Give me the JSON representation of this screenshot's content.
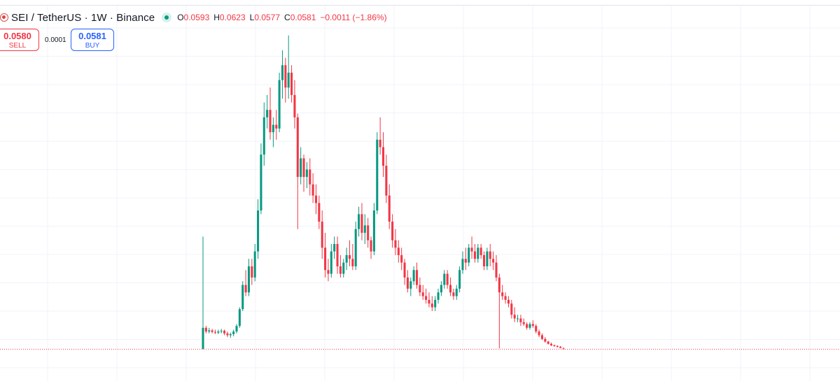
{
  "legend": {
    "symbol": "SEI / TetherUS · 1W · Binance",
    "ohlc": {
      "o_label": "O",
      "o_value": "0.0593",
      "h_label": "H",
      "h_value": "0.0623",
      "l_label": "L",
      "l_value": "0.0577",
      "c_label": "C",
      "c_value": "0.0581",
      "change": "−0.0011 (−1.86%)"
    }
  },
  "trade": {
    "sell_price": "0.0580",
    "sell_label": "SELL",
    "spread": "0.0001",
    "buy_price": "0.0581",
    "buy_label": "BUY"
  },
  "colors": {
    "up": "#089981",
    "down": "#f23645",
    "grid": "#f0f3fa",
    "price_line": "#f23645"
  },
  "chart_data": {
    "type": "candlestick",
    "interval": "1W",
    "last_close": 0.0581,
    "y_range": [
      0.05,
      0.92
    ],
    "grid": true,
    "candles": [
      [
        0.058,
        0.36,
        0.058,
        0.115
      ],
      [
        0.115,
        0.12,
        0.1,
        0.105
      ],
      [
        0.105,
        0.115,
        0.1,
        0.108
      ],
      [
        0.108,
        0.112,
        0.1,
        0.104
      ],
      [
        0.104,
        0.11,
        0.098,
        0.102
      ],
      [
        0.102,
        0.11,
        0.098,
        0.105
      ],
      [
        0.105,
        0.112,
        0.1,
        0.107
      ],
      [
        0.107,
        0.11,
        0.095,
        0.1
      ],
      [
        0.1,
        0.105,
        0.09,
        0.095
      ],
      [
        0.095,
        0.102,
        0.088,
        0.098
      ],
      [
        0.098,
        0.11,
        0.092,
        0.105
      ],
      [
        0.105,
        0.125,
        0.1,
        0.12
      ],
      [
        0.12,
        0.17,
        0.115,
        0.165
      ],
      [
        0.165,
        0.24,
        0.16,
        0.23
      ],
      [
        0.23,
        0.27,
        0.2,
        0.21
      ],
      [
        0.21,
        0.3,
        0.2,
        0.28
      ],
      [
        0.28,
        0.3,
        0.23,
        0.25
      ],
      [
        0.25,
        0.34,
        0.24,
        0.32
      ],
      [
        0.32,
        0.46,
        0.3,
        0.43
      ],
      [
        0.43,
        0.61,
        0.42,
        0.58
      ],
      [
        0.58,
        0.72,
        0.55,
        0.68
      ],
      [
        0.68,
        0.74,
        0.65,
        0.7
      ],
      [
        0.7,
        0.76,
        0.62,
        0.64
      ],
      [
        0.64,
        0.68,
        0.6,
        0.66
      ],
      [
        0.66,
        0.7,
        0.62,
        0.65
      ],
      [
        0.65,
        0.8,
        0.64,
        0.78
      ],
      [
        0.78,
        0.86,
        0.73,
        0.82
      ],
      [
        0.82,
        0.84,
        0.72,
        0.76
      ],
      [
        0.76,
        0.9,
        0.73,
        0.8
      ],
      [
        0.8,
        0.82,
        0.72,
        0.74
      ],
      [
        0.74,
        0.78,
        0.65,
        0.68
      ],
      [
        0.68,
        0.69,
        0.38,
        0.52
      ],
      [
        0.52,
        0.6,
        0.5,
        0.57
      ],
      [
        0.57,
        0.58,
        0.48,
        0.52
      ],
      [
        0.52,
        0.56,
        0.49,
        0.54
      ],
      [
        0.54,
        0.57,
        0.47,
        0.5
      ],
      [
        0.5,
        0.53,
        0.45,
        0.47
      ],
      [
        0.47,
        0.5,
        0.42,
        0.45
      ],
      [
        0.45,
        0.47,
        0.38,
        0.4
      ],
      [
        0.4,
        0.43,
        0.3,
        0.33
      ],
      [
        0.33,
        0.37,
        0.25,
        0.27
      ],
      [
        0.27,
        0.3,
        0.24,
        0.26
      ],
      [
        0.26,
        0.34,
        0.25,
        0.32
      ],
      [
        0.32,
        0.36,
        0.3,
        0.34
      ],
      [
        0.34,
        0.36,
        0.26,
        0.28
      ],
      [
        0.28,
        0.31,
        0.25,
        0.26
      ],
      [
        0.26,
        0.3,
        0.25,
        0.29
      ],
      [
        0.29,
        0.33,
        0.27,
        0.31
      ],
      [
        0.31,
        0.35,
        0.28,
        0.3
      ],
      [
        0.3,
        0.34,
        0.27,
        0.28
      ],
      [
        0.28,
        0.4,
        0.27,
        0.38
      ],
      [
        0.38,
        0.44,
        0.36,
        0.42
      ],
      [
        0.42,
        0.45,
        0.35,
        0.37
      ],
      [
        0.37,
        0.42,
        0.34,
        0.39
      ],
      [
        0.39,
        0.41,
        0.33,
        0.35
      ],
      [
        0.35,
        0.36,
        0.3,
        0.32
      ],
      [
        0.32,
        0.45,
        0.31,
        0.43
      ],
      [
        0.43,
        0.64,
        0.42,
        0.62
      ],
      [
        0.62,
        0.68,
        0.58,
        0.6
      ],
      [
        0.6,
        0.64,
        0.52,
        0.55
      ],
      [
        0.55,
        0.58,
        0.45,
        0.47
      ],
      [
        0.47,
        0.5,
        0.38,
        0.4
      ],
      [
        0.4,
        0.42,
        0.33,
        0.35
      ],
      [
        0.35,
        0.38,
        0.31,
        0.33
      ],
      [
        0.33,
        0.35,
        0.29,
        0.31
      ],
      [
        0.31,
        0.33,
        0.27,
        0.29
      ],
      [
        0.29,
        0.3,
        0.23,
        0.25
      ],
      [
        0.25,
        0.27,
        0.21,
        0.22
      ],
      [
        0.22,
        0.25,
        0.2,
        0.24
      ],
      [
        0.24,
        0.28,
        0.23,
        0.27
      ],
      [
        0.27,
        0.29,
        0.22,
        0.23
      ],
      [
        0.23,
        0.25,
        0.2,
        0.21
      ],
      [
        0.21,
        0.23,
        0.19,
        0.2
      ],
      [
        0.2,
        0.22,
        0.18,
        0.19
      ],
      [
        0.19,
        0.21,
        0.17,
        0.18
      ],
      [
        0.18,
        0.2,
        0.16,
        0.17
      ],
      [
        0.17,
        0.2,
        0.16,
        0.19
      ],
      [
        0.19,
        0.22,
        0.18,
        0.21
      ],
      [
        0.21,
        0.24,
        0.2,
        0.23
      ],
      [
        0.23,
        0.27,
        0.22,
        0.26
      ],
      [
        0.26,
        0.27,
        0.22,
        0.23
      ],
      [
        0.23,
        0.25,
        0.2,
        0.21
      ],
      [
        0.21,
        0.22,
        0.19,
        0.2
      ],
      [
        0.2,
        0.23,
        0.19,
        0.22
      ],
      [
        0.22,
        0.28,
        0.21,
        0.27
      ],
      [
        0.27,
        0.32,
        0.26,
        0.3
      ],
      [
        0.3,
        0.33,
        0.27,
        0.29
      ],
      [
        0.29,
        0.34,
        0.28,
        0.33
      ],
      [
        0.33,
        0.36,
        0.3,
        0.32
      ],
      [
        0.32,
        0.34,
        0.29,
        0.3
      ],
      [
        0.3,
        0.34,
        0.29,
        0.33
      ],
      [
        0.33,
        0.34,
        0.3,
        0.31
      ],
      [
        0.31,
        0.32,
        0.27,
        0.28
      ],
      [
        0.28,
        0.33,
        0.27,
        0.32
      ],
      [
        0.32,
        0.34,
        0.28,
        0.3
      ],
      [
        0.3,
        0.32,
        0.27,
        0.29
      ],
      [
        0.29,
        0.31,
        0.24,
        0.25
      ],
      [
        0.25,
        0.26,
        0.06,
        0.21
      ],
      [
        0.21,
        0.23,
        0.19,
        0.2
      ],
      [
        0.2,
        0.21,
        0.18,
        0.19
      ],
      [
        0.19,
        0.2,
        0.17,
        0.18
      ],
      [
        0.18,
        0.19,
        0.14,
        0.15
      ],
      [
        0.15,
        0.17,
        0.13,
        0.14
      ],
      [
        0.14,
        0.15,
        0.13,
        0.14
      ],
      [
        0.14,
        0.15,
        0.12,
        0.13
      ],
      [
        0.13,
        0.14,
        0.12,
        0.125
      ],
      [
        0.125,
        0.13,
        0.11,
        0.115
      ],
      [
        0.115,
        0.13,
        0.11,
        0.125
      ],
      [
        0.125,
        0.135,
        0.115,
        0.12
      ],
      [
        0.12,
        0.125,
        0.1,
        0.105
      ],
      [
        0.105,
        0.11,
        0.09,
        0.095
      ],
      [
        0.095,
        0.1,
        0.082,
        0.085
      ],
      [
        0.085,
        0.09,
        0.075,
        0.078
      ],
      [
        0.078,
        0.08,
        0.07,
        0.072
      ],
      [
        0.072,
        0.075,
        0.066,
        0.068
      ],
      [
        0.068,
        0.07,
        0.064,
        0.066
      ],
      [
        0.066,
        0.068,
        0.062,
        0.064
      ],
      [
        0.064,
        0.066,
        0.06,
        0.061
      ],
      [
        0.0593,
        0.0623,
        0.0577,
        0.0581
      ]
    ]
  }
}
